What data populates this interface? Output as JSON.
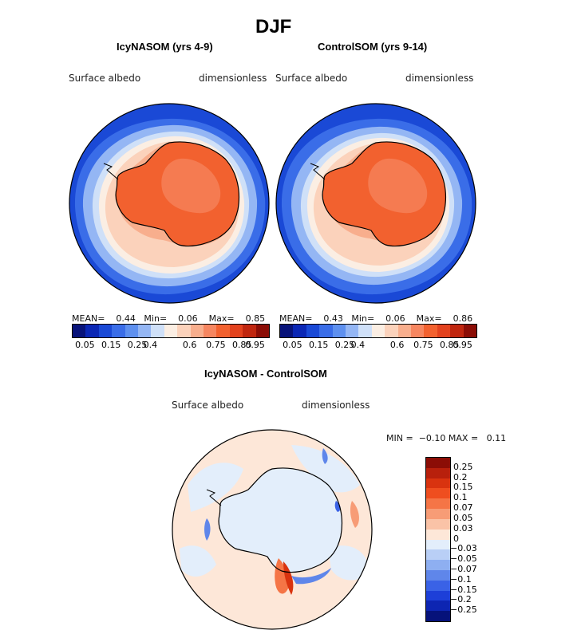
{
  "title": "DJF",
  "panels": [
    {
      "subtitle": "IcyNASOM (yrs 4-9)",
      "var_label": "Surface albedo",
      "units": "dimensionless",
      "stats": {
        "mean_label": "MEAN=",
        "mean": "0.44",
        "min_label": "Min=",
        "min": "0.06",
        "max_label": "Max=",
        "max": "0.85"
      }
    },
    {
      "subtitle": "ControlSOM (yrs 9-14)",
      "var_label": "Surface albedo",
      "units": "dimensionless",
      "stats": {
        "mean_label": "MEAN=",
        "mean": "0.43",
        "min_label": "Min=",
        "min": "0.06",
        "max_label": "Max=",
        "max": "0.86"
      }
    }
  ],
  "colorbar_albedo": {
    "colors": [
      "#08137a",
      "#0b27b5",
      "#1a49d6",
      "#3a6de8",
      "#5e90ef",
      "#94b6f4",
      "#cfe0f8",
      "#fbeee3",
      "#fbd2bb",
      "#f8ae8d",
      "#f68660",
      "#f2612f",
      "#e3421e",
      "#c0260f",
      "#8b0d06"
    ],
    "ticks": [
      "0.05",
      "0.15",
      "0.25",
      "0.4",
      "0.6",
      "0.75",
      "0.85",
      "0.95"
    ]
  },
  "diff_panel": {
    "subtitle": "IcyNASOM - ControlSOM",
    "var_label": "Surface albedo",
    "units": "dimensionless",
    "min_label": "MIN =",
    "min": "−0.10",
    "max_label": "MAX =",
    "max": "0.11"
  },
  "colorbar_diff": {
    "colors": [
      "#8b0d06",
      "#b8200c",
      "#d9330f",
      "#ef4e1f",
      "#f57546",
      "#f79c76",
      "#fac3a7",
      "#fde7d8",
      "#e3eefb",
      "#b9cff6",
      "#8eaff1",
      "#5f86ea",
      "#3a62e6",
      "#1d3fd8",
      "#0d25b2",
      "#06127a"
    ],
    "ticks": [
      "0.25",
      "0.2",
      "0.15",
      "0.1",
      "0.07",
      "0.05",
      "0.03",
      "0",
      "−0.03",
      "−0.05",
      "−0.07",
      "−0.1",
      "−0.15",
      "−0.2",
      "−0.25"
    ]
  }
}
